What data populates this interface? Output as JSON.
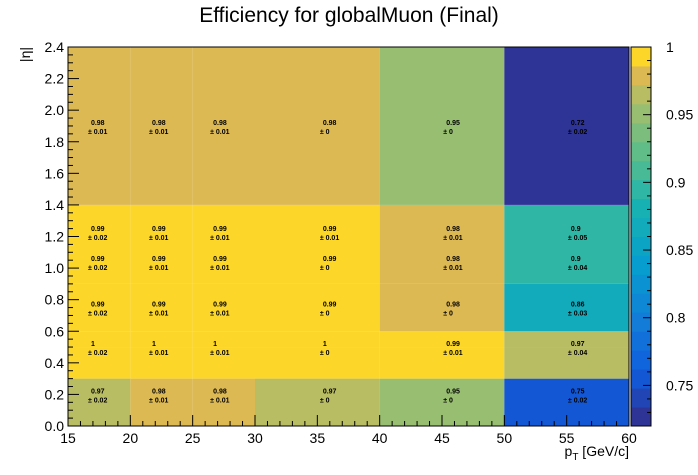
{
  "chart_data": {
    "type": "heatmap",
    "title": "Efficiency for globalMuon (Final)",
    "xlabel": "p",
    "xlabel_sub": "T",
    "xlabel_unit": " [GeV/c]",
    "ylabel": "|η|",
    "x_edges": [
      15,
      20,
      25,
      30,
      40,
      50,
      60
    ],
    "y_edges": [
      0.0,
      0.3,
      0.5,
      0.6,
      0.9,
      1.4,
      2.4
    ],
    "xlim": [
      15,
      60
    ],
    "ylim": [
      0,
      2.4
    ],
    "x_ticks": [
      "15",
      "20",
      "25",
      "30",
      "35",
      "40",
      "45",
      "50",
      "55",
      "60"
    ],
    "y_ticks": [
      "0.0",
      "0.2",
      "0.4",
      "0.6",
      "0.8",
      "1.0",
      "1.2",
      "1.4",
      "1.6",
      "1.8",
      "2.0",
      "2.2",
      "2.4"
    ],
    "z_range": [
      0.72,
      1.0
    ],
    "colorbar_ticks": [
      "0.75",
      "0.8",
      "0.85",
      "0.9",
      "0.95",
      "1"
    ],
    "cells": [
      {
        "x_bin": 0,
        "y_bin": 0,
        "value": 0.97,
        "error": 0.02,
        "label": "0.97",
        "err_label": "± 0.02",
        "label_y": [
          0.2
        ]
      },
      {
        "x_bin": 1,
        "y_bin": 0,
        "value": 0.98,
        "error": 0.01,
        "label": "0.98",
        "err_label": "± 0.01",
        "label_y": [
          0.2
        ]
      },
      {
        "x_bin": 2,
        "y_bin": 0,
        "value": 0.98,
        "error": 0.01,
        "label": "0.98",
        "err_label": "± 0.01",
        "label_y": [
          0.2
        ]
      },
      {
        "x_bin": 3,
        "y_bin": 0,
        "value": 0.97,
        "error": 0,
        "label": "0.97",
        "err_label": "± 0",
        "label_y": [
          0.2
        ]
      },
      {
        "x_bin": 4,
        "y_bin": 0,
        "value": 0.95,
        "error": 0,
        "label": "0.95",
        "err_label": "± 0",
        "label_y": [
          0.2
        ]
      },
      {
        "x_bin": 5,
        "y_bin": 0,
        "value": 0.75,
        "error": 0.02,
        "label": "0.75",
        "err_label": "± 0.02",
        "label_y": [
          0.2
        ]
      },
      {
        "x_bin": 0,
        "y_bin": 1,
        "value": 1.0,
        "error": 0.02,
        "label": "1",
        "err_label": "± 0.02",
        "label_y": [
          0.5
        ]
      },
      {
        "x_bin": 1,
        "y_bin": 1,
        "value": 1.0,
        "error": 0.01,
        "label": "1",
        "err_label": "± 0.01",
        "label_y": [
          0.5
        ]
      },
      {
        "x_bin": 2,
        "y_bin": 1,
        "value": 1.0,
        "error": 0.01,
        "label": "1",
        "err_label": "± 0.01",
        "label_y": [
          0.5
        ]
      },
      {
        "x_bin": 3,
        "y_bin": 1,
        "value": 1.0,
        "error": 0,
        "label": "1",
        "err_label": "± 0",
        "label_y": [
          0.5
        ]
      },
      {
        "x_bin": 4,
        "y_bin": 1,
        "value": 0.99,
        "error": 0.01,
        "label": "0.99",
        "err_label": "± 0.01",
        "label_y": [
          0.5
        ]
      },
      {
        "x_bin": 5,
        "y_bin": 1,
        "value": 0.97,
        "error": 0.04,
        "label": "0.97",
        "err_label": "± 0.04",
        "label_y": [
          0.5
        ]
      },
      {
        "x_bin": 0,
        "y_bin": 2,
        "value": 1.0,
        "error": 0,
        "label": "",
        "err_label": "",
        "label_y": []
      },
      {
        "x_bin": 1,
        "y_bin": 2,
        "value": 1.0,
        "error": 0,
        "label": "",
        "err_label": "",
        "label_y": []
      },
      {
        "x_bin": 2,
        "y_bin": 2,
        "value": 1.0,
        "error": 0,
        "label": "",
        "err_label": "",
        "label_y": []
      },
      {
        "x_bin": 3,
        "y_bin": 2,
        "value": 1.0,
        "error": 0,
        "label": "",
        "err_label": "",
        "label_y": []
      },
      {
        "x_bin": 4,
        "y_bin": 2,
        "value": 0.99,
        "error": 0,
        "label": "",
        "err_label": "",
        "label_y": []
      },
      {
        "x_bin": 5,
        "y_bin": 2,
        "value": 0.97,
        "error": 0,
        "label": "",
        "err_label": "",
        "label_y": []
      },
      {
        "x_bin": 0,
        "y_bin": 3,
        "value": 0.99,
        "error": 0.02,
        "label": "0.99",
        "err_label": "± 0.02",
        "label_y": [
          0.75
        ]
      },
      {
        "x_bin": 1,
        "y_bin": 3,
        "value": 0.99,
        "error": 0.01,
        "label": "0.99",
        "err_label": "± 0.01",
        "label_y": [
          0.75
        ]
      },
      {
        "x_bin": 2,
        "y_bin": 3,
        "value": 0.99,
        "error": 0.01,
        "label": "0.99",
        "err_label": "± 0.01",
        "label_y": [
          0.75
        ]
      },
      {
        "x_bin": 3,
        "y_bin": 3,
        "value": 0.99,
        "error": 0,
        "label": "0.99",
        "err_label": "± 0",
        "label_y": [
          0.75
        ]
      },
      {
        "x_bin": 4,
        "y_bin": 3,
        "value": 0.98,
        "error": 0,
        "label": "0.98",
        "err_label": "± 0",
        "label_y": [
          0.75
        ]
      },
      {
        "x_bin": 5,
        "y_bin": 3,
        "value": 0.86,
        "error": 0.03,
        "label": "0.86",
        "err_label": "± 0.03",
        "label_y": [
          0.75
        ]
      },
      {
        "x_bin": 0,
        "y_bin": 4,
        "value": 0.99,
        "error": 0.02,
        "label": "0.99",
        "err_label": "± 0.02",
        "label_y": [
          1.04,
          1.23
        ]
      },
      {
        "x_bin": 1,
        "y_bin": 4,
        "value": 0.99,
        "error": 0.01,
        "label": "0.99",
        "err_label": "± 0.01",
        "label_y": [
          1.04,
          1.23
        ]
      },
      {
        "x_bin": 2,
        "y_bin": 4,
        "value": 0.99,
        "error": 0.01,
        "label": "0.99",
        "err_label": "± 0.01",
        "label_y": [
          1.04,
          1.23
        ]
      },
      {
        "x_bin": 3,
        "y_bin": 4,
        "value": 0.99,
        "error": 0,
        "label": "0.99",
        "err_label": "± 0",
        "label_y": [
          1.04
        ]
      },
      {
        "x_bin": 4,
        "y_bin": 4,
        "value": 0.98,
        "error": 0.01,
        "label": "0.98",
        "err_label": "± 0.01",
        "label_y": [
          1.04,
          1.23
        ]
      },
      {
        "x_bin": 5,
        "y_bin": 4,
        "value": 0.9,
        "error": 0.04,
        "label": "0.9",
        "err_label": "± 0.04",
        "label_y": [
          1.04
        ]
      },
      {
        "x_bin": 3,
        "y_bin": 4,
        "value": 0.99,
        "error": 0.01,
        "label": "0.99",
        "err_label": "± 0.01",
        "label_y": [
          1.23
        ],
        "overlay": true
      },
      {
        "x_bin": 5,
        "y_bin": 4,
        "value": 0.9,
        "error": 0.05,
        "label": "0.9",
        "err_label": "± 0.05",
        "label_y": [
          1.23
        ],
        "overlay": true
      },
      {
        "x_bin": 0,
        "y_bin": 5,
        "value": 0.98,
        "error": 0.01,
        "label": "0.98",
        "err_label": "± 0.01",
        "label_y": [
          1.9
        ]
      },
      {
        "x_bin": 1,
        "y_bin": 5,
        "value": 0.98,
        "error": 0.01,
        "label": "0.98",
        "err_label": "± 0.01",
        "label_y": [
          1.9
        ]
      },
      {
        "x_bin": 2,
        "y_bin": 5,
        "value": 0.98,
        "error": 0.01,
        "label": "0.98",
        "err_label": "± 0.01",
        "label_y": [
          1.9
        ]
      },
      {
        "x_bin": 3,
        "y_bin": 5,
        "value": 0.98,
        "error": 0,
        "label": "0.98",
        "err_label": "± 0",
        "label_y": [
          1.9
        ]
      },
      {
        "x_bin": 4,
        "y_bin": 5,
        "value": 0.95,
        "error": 0,
        "label": "0.95",
        "err_label": "± 0",
        "label_y": [
          1.9
        ]
      },
      {
        "x_bin": 5,
        "y_bin": 5,
        "value": 0.72,
        "error": 0.02,
        "label": "0.72",
        "err_label": "± 0.02",
        "label_y": [
          1.9
        ]
      }
    ],
    "label_x_fracs": [
      0.1,
      0.1,
      0.1,
      0.3,
      0.3,
      0.3
    ],
    "label_x_values": [
      16.6,
      21.5,
      26.4,
      35.2,
      45.1,
      55.1
    ]
  }
}
